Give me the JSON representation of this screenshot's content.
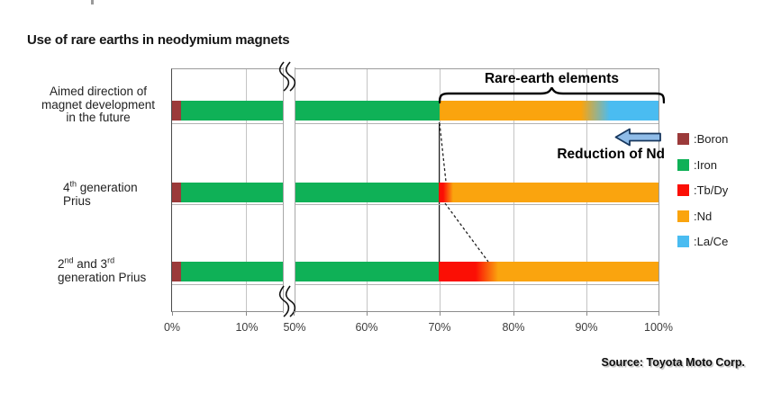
{
  "title": "Use of rare earths in neodymium magnets",
  "annotations": {
    "rare_earth": "Rare-earth elements",
    "reduction": "Reduction of Nd"
  },
  "source": "Source: Toyota Moto Corp.",
  "colors": {
    "boron": "#9B3A3A",
    "iron": "#0FB157",
    "tbdy": "#FB0F05",
    "nd": "#FAA40E",
    "lace": "#4ABCF1",
    "arrow_fill": "#8FBCE8",
    "arrow_stroke": "#17375E"
  },
  "legend": [
    {
      "key": "boron",
      "label": ":Boron"
    },
    {
      "key": "iron",
      "label": ":Iron"
    },
    {
      "key": "tbdy",
      "label": ":Tb/Dy"
    },
    {
      "key": "nd",
      "label": ":Nd"
    },
    {
      "key": "lace",
      "label": ":La/Ce"
    }
  ],
  "x_axis": {
    "tick_labels": [
      "0%",
      "10%",
      "50%",
      "60%",
      "70%",
      "80%",
      "90%",
      "100%"
    ],
    "break_between": [
      "10%",
      "50%"
    ]
  },
  "categories": [
    {
      "id": "future",
      "lines": [
        [
          {
            "t": "Aimed direction of"
          }
        ],
        [
          {
            "t": "magnet development"
          }
        ],
        [
          {
            "t": "in the future"
          }
        ]
      ]
    },
    {
      "id": "gen4",
      "lines": [
        [
          {
            "t": "4"
          },
          {
            "t": "th",
            "sup": true
          },
          {
            "t": " generation"
          }
        ],
        [
          {
            "t": "Prius"
          }
        ]
      ]
    },
    {
      "id": "gen23",
      "lines": [
        [
          {
            "t": "2"
          },
          {
            "t": "nd",
            "sup": true
          },
          {
            "t": " and 3"
          },
          {
            "t": "rd",
            "sup": true
          }
        ],
        [
          {
            "t": "generation Prius"
          }
        ]
      ]
    }
  ],
  "chart_data": {
    "type": "bar",
    "orientation": "horizontal",
    "stacked": true,
    "title": "Use of rare earths in neodymium magnets",
    "categories": [
      "Aimed direction of magnet development in the future",
      "4th generation Prius",
      "2nd and 3rd generation Prius"
    ],
    "series": [
      {
        "name": "Boron",
        "values": [
          1,
          1,
          1
        ]
      },
      {
        "name": "Iron",
        "values": [
          69,
          69,
          69
        ]
      },
      {
        "name": "Tb/Dy",
        "values": [
          0,
          1,
          6
        ]
      },
      {
        "name": "Nd",
        "values": [
          19,
          29,
          24
        ]
      },
      {
        "name": "La/Ce",
        "values": [
          11,
          0,
          0
        ]
      }
    ],
    "xlim": [
      0,
      100
    ],
    "x_ticks": [
      "0%",
      "10%",
      "50%",
      "60%",
      "70%",
      "80%",
      "90%",
      "100%"
    ],
    "x_break": [
      10,
      50
    ],
    "grid": true,
    "legend_position": "right",
    "notes": "Stacked composition to 100%; x axis broken between 10% and 50%; dashed leader lines show Tb/Dy shrinking from gen2/3 to gen4 to zero in future; arrow annotation indicates reduction of Nd replaced by La/Ce."
  },
  "bars_render": [
    {
      "category": "future",
      "stops": [
        [
          "boron",
          0,
          10
        ],
        [
          "iron",
          10,
          297
        ],
        [
          "nd",
          297,
          454
        ],
        [
          "nd>lace",
          454,
          486
        ],
        [
          "lace",
          486,
          540
        ]
      ]
    },
    {
      "category": "gen4",
      "stops": [
        [
          "boron",
          0,
          10
        ],
        [
          "iron",
          10,
          296
        ],
        [
          "tbdy",
          296,
          301
        ],
        [
          "tbdy>nd",
          301,
          312
        ],
        [
          "nd",
          312,
          540
        ]
      ]
    },
    {
      "category": "gen23",
      "stops": [
        [
          "boron",
          0,
          10
        ],
        [
          "iron",
          10,
          296
        ],
        [
          "tbdy",
          296,
          337
        ],
        [
          "tbdy>nd",
          337,
          362
        ],
        [
          "nd",
          362,
          540
        ]
      ]
    }
  ]
}
